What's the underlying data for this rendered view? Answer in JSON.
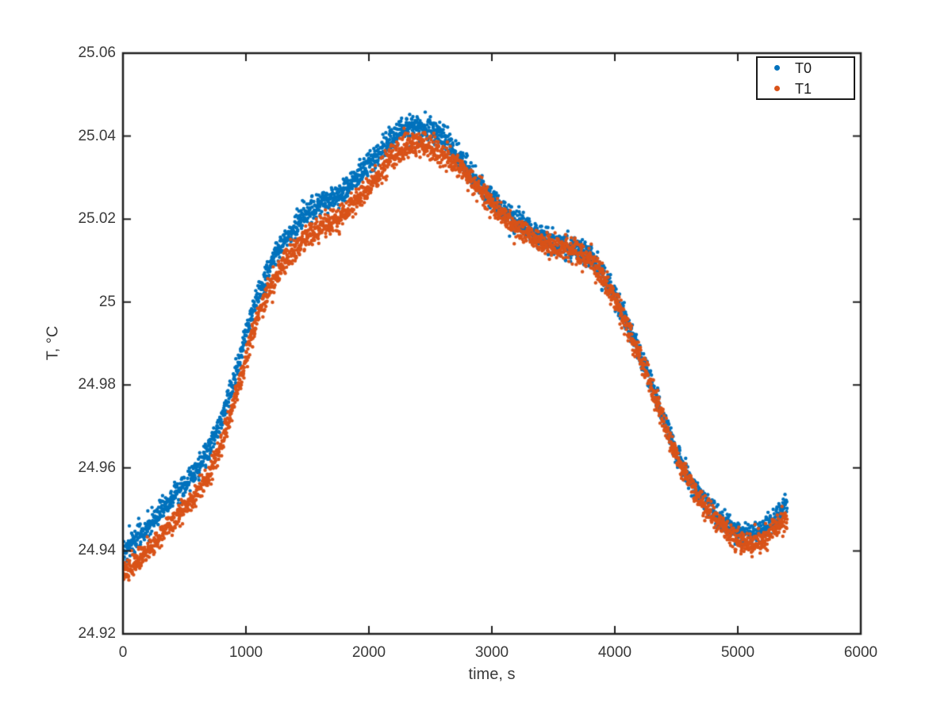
{
  "figure_title": "",
  "legend": {
    "items": [
      {
        "label": "T0",
        "marker": "dot"
      },
      {
        "label": "T1",
        "marker": "dot"
      }
    ],
    "position": "top-right"
  },
  "chart_data": {
    "type": "scatter",
    "title": "",
    "xlabel": "time, s",
    "ylabel": "T, °C",
    "xlim": [
      0,
      6000
    ],
    "ylim": [
      24.92,
      25.06
    ],
    "x_ticks": [
      0,
      1000,
      2000,
      3000,
      4000,
      5000,
      6000
    ],
    "x_tick_labels": [
      "0",
      "1000",
      "2000",
      "3000",
      "4000",
      "5000",
      "6000"
    ],
    "y_ticks": [
      24.92,
      24.94,
      24.96,
      24.98,
      25,
      25.02,
      25.04,
      25.06
    ],
    "y_tick_labels": [
      "24.92",
      "24.94",
      "24.96",
      "24.98",
      "25",
      "25.02",
      "25.04",
      "25.06"
    ],
    "grid": false,
    "box": true,
    "tick_direction": "in",
    "axis_color": "#1f1f1f",
    "background_color": "#ffffff",
    "legend_position": "top-right",
    "marker": "filled-circle",
    "marker_diameter_px": 4.4,
    "noise_sigma_degC": 0.0014,
    "outlier_probability": 0.02,
    "outlier_amplitude_degC": 0.0035,
    "t_start_s": 0,
    "t_end_s": 5400,
    "sample_step_s": 2,
    "control_spacing_s": 100,
    "series": [
      {
        "name": "T0",
        "color": "#0072BD",
        "control_T": [
          24.94,
          24.943,
          24.9455,
          24.949,
          24.9525,
          24.956,
          24.9595,
          24.9645,
          24.9715,
          24.981,
          24.9925,
          25.002,
          25.009,
          25.0145,
          25.018,
          25.022,
          25.024,
          25.025,
          25.027,
          25.03,
          25.033,
          25.0365,
          25.04,
          25.042,
          25.0425,
          25.0415,
          25.0395,
          25.036,
          25.0325,
          25.028,
          25.0245,
          25.0215,
          25.0195,
          25.0175,
          25.0155,
          25.014,
          25.0135,
          25.013,
          25.011,
          25.007,
          25.0015,
          24.995,
          24.9875,
          24.98,
          24.9715,
          24.9635,
          24.9575,
          24.953,
          24.9495,
          24.9465,
          24.9445,
          24.9435,
          24.9445,
          24.9475,
          24.951
        ]
      },
      {
        "name": "T1",
        "color": "#D95319",
        "control_T": [
          24.9345,
          24.9375,
          24.94,
          24.9435,
          24.947,
          24.9505,
          24.954,
          24.9585,
          24.9655,
          24.975,
          24.9865,
          24.9965,
          25.0035,
          25.009,
          25.0125,
          25.016,
          25.018,
          25.019,
          25.0215,
          25.0245,
          25.0275,
          25.0315,
          25.0355,
          25.0375,
          25.038,
          25.037,
          25.0355,
          25.0335,
          25.031,
          25.027,
          25.0235,
          25.0205,
          25.0185,
          25.0165,
          25.0145,
          25.013,
          25.0125,
          25.012,
          25.01,
          25.006,
          25.0005,
          24.9945,
          24.987,
          24.9795,
          24.971,
          24.963,
          24.957,
          24.952,
          24.948,
          24.945,
          24.9425,
          24.9415,
          24.9425,
          24.9455,
          24.948
        ]
      }
    ]
  }
}
